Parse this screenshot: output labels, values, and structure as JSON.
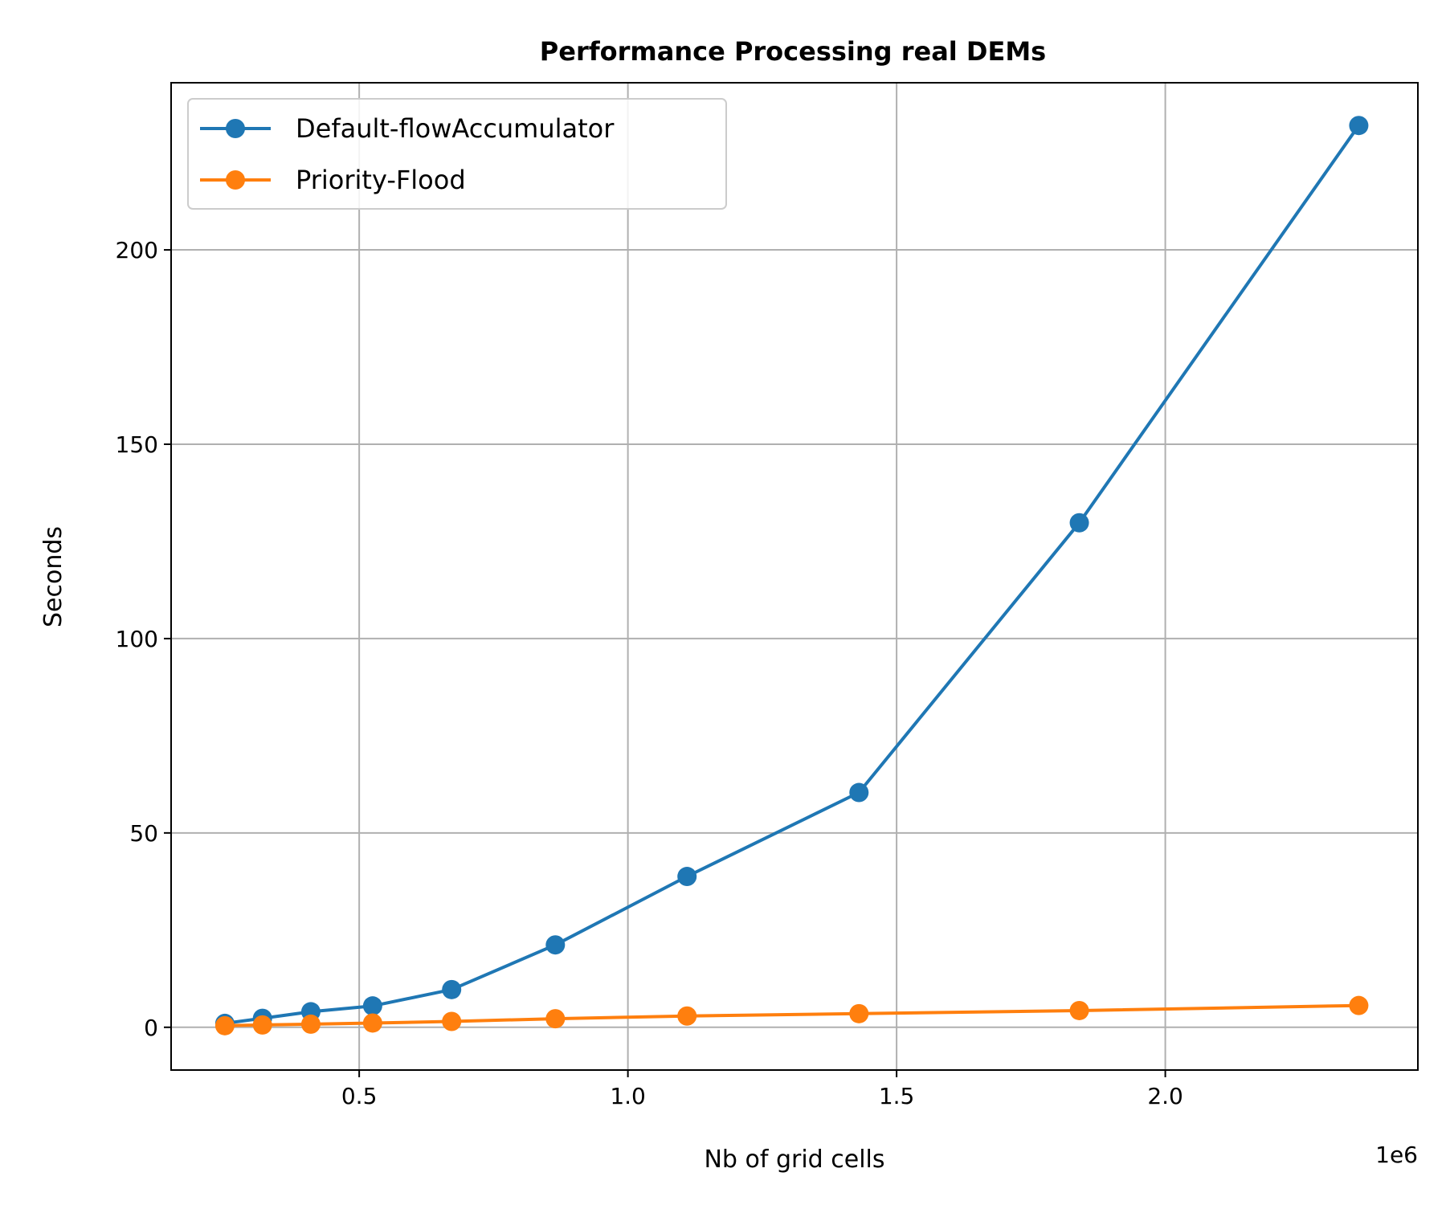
{
  "chart_data": {
    "type": "line",
    "title": "Performance Processing real DEMs",
    "xlabel": "Nb of grid cells",
    "ylabel": "Seconds",
    "x_offset_label": "1e6",
    "x_scale": 1000000,
    "xlim": [
      150000,
      2470000
    ],
    "ylim": [
      -11,
      243
    ],
    "xticks": [
      500000,
      1000000,
      1500000,
      2000000
    ],
    "xtick_labels": [
      "0.5",
      "1.0",
      "1.5",
      "2.0"
    ],
    "yticks": [
      0,
      50,
      100,
      150,
      200
    ],
    "ytick_labels": [
      "0",
      "50",
      "100",
      "150",
      "200"
    ],
    "grid": true,
    "legend_position": "upper-left",
    "series": [
      {
        "name": "Default-flowAccumulator",
        "color": "#1f77b4",
        "marker": "circle",
        "x": [
          250000,
          320000,
          410000,
          525000,
          672000,
          865000,
          1110000,
          1430000,
          1840000,
          2360000
        ],
        "y": [
          1.0,
          2.3,
          4.0,
          5.5,
          9.7,
          21.2,
          38.8,
          60.4,
          129.8,
          232.0
        ]
      },
      {
        "name": "Priority-Flood",
        "color": "#ff7f0e",
        "marker": "circle",
        "x": [
          250000,
          320000,
          410000,
          525000,
          672000,
          865000,
          1110000,
          1430000,
          1840000,
          2360000
        ],
        "y": [
          0.4,
          0.6,
          0.8,
          1.1,
          1.5,
          2.2,
          2.9,
          3.5,
          4.3,
          5.6
        ]
      }
    ]
  }
}
